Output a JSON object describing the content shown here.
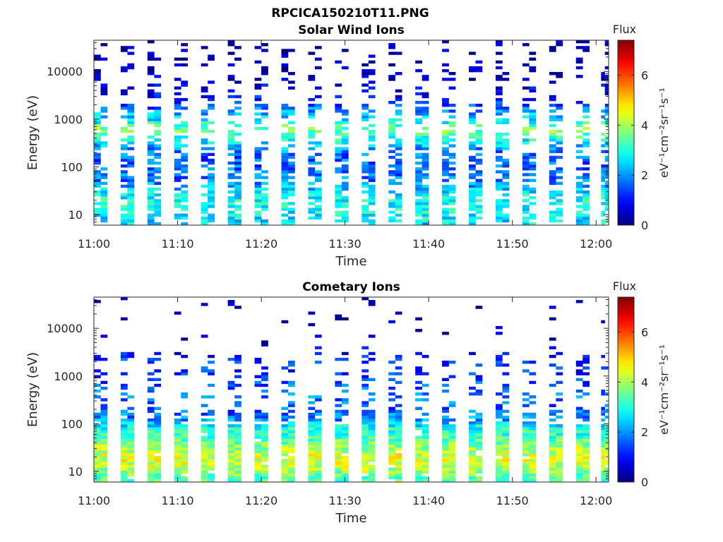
{
  "figure_title": "RPCICA150210T11.PNG",
  "chart_data": [
    {
      "type": "heatmap",
      "title": "Solar Wind Ions",
      "xlabel": "Time",
      "ylabel": "Energy (eV)",
      "yscale": "log",
      "x_tick_labels": [
        "11:00",
        "11:10",
        "11:20",
        "11:30",
        "11:40",
        "11:50",
        "12:00"
      ],
      "x_tick_minutes": [
        0,
        10,
        20,
        30,
        40,
        50,
        60
      ],
      "xlim_minutes": [
        0,
        61.5
      ],
      "y_tick_labels": [
        "10",
        "100",
        "1000",
        "10000"
      ],
      "y_tick_values": [
        10,
        100,
        1000,
        10000
      ],
      "ylim": [
        6,
        45000
      ],
      "colorbar": {
        "title": "Flux",
        "label": "eV⁻¹cm⁻²sr⁻¹s⁻¹",
        "tick_labels": [
          "0",
          "2",
          "4",
          "6"
        ],
        "tick_values": [
          0,
          2,
          4,
          6
        ],
        "range": [
          0,
          7.4
        ]
      },
      "time_columns_minutes": [
        0,
        3.2,
        6.4,
        9.6,
        12.8,
        16,
        19.2,
        22.4,
        25.6,
        28.8,
        32,
        35.2,
        38.4,
        41.6,
        44.8,
        48,
        51.2,
        54.4,
        57.6,
        60.6
      ],
      "flux_profile": [
        {
          "energy_eV": 8,
          "flux": 2.6
        },
        {
          "energy_eV": 12,
          "flux": 2.8
        },
        {
          "energy_eV": 20,
          "flux": 2.9
        },
        {
          "energy_eV": 30,
          "flux": 2.6
        },
        {
          "energy_eV": 50,
          "flux": 1.8
        },
        {
          "energy_eV": 80,
          "flux": 1.7
        },
        {
          "energy_eV": 120,
          "flux": 1.6
        },
        {
          "energy_eV": 200,
          "flux": 1.7
        },
        {
          "energy_eV": 400,
          "flux": 3.0
        },
        {
          "energy_eV": 600,
          "flux": 3.7
        },
        {
          "energy_eV": 1000,
          "flux": 2.7
        },
        {
          "energy_eV": 1600,
          "flux": 1.8
        },
        {
          "energy_eV": 2500,
          "flux": 1.0
        },
        {
          "energy_eV": 5000,
          "flux": 0.6
        },
        {
          "energy_eV": 10000,
          "flux": 0.4
        },
        {
          "energy_eV": 20000,
          "flux": 0.3
        },
        {
          "energy_eV": 40000,
          "flux": 0.2
        }
      ]
    },
    {
      "type": "heatmap",
      "title": "Cometary Ions",
      "xlabel": "Time",
      "ylabel": "Energy (eV)",
      "yscale": "log",
      "x_tick_labels": [
        "11:00",
        "11:10",
        "11:20",
        "11:30",
        "11:40",
        "11:50",
        "12:00"
      ],
      "x_tick_minutes": [
        0,
        10,
        20,
        30,
        40,
        50,
        60
      ],
      "xlim_minutes": [
        0,
        61.5
      ],
      "y_tick_labels": [
        "10",
        "100",
        "1000",
        "10000"
      ],
      "y_tick_values": [
        10,
        100,
        1000,
        10000
      ],
      "ylim": [
        6,
        45000
      ],
      "colorbar": {
        "title": "Flux",
        "label": "eV⁻¹cm⁻²sr⁻¹s⁻¹",
        "tick_labels": [
          "0",
          "2",
          "4",
          "6"
        ],
        "tick_values": [
          0,
          2,
          4,
          6
        ],
        "range": [
          0,
          7.4
        ]
      },
      "time_columns_minutes": [
        0,
        3.2,
        6.4,
        9.6,
        12.8,
        16,
        19.2,
        22.4,
        25.6,
        28.8,
        32,
        35.2,
        38.4,
        41.6,
        44.8,
        48,
        51.2,
        54.4,
        57.6,
        60.6
      ],
      "flux_profile": [
        {
          "energy_eV": 8,
          "flux": 3.4
        },
        {
          "energy_eV": 12,
          "flux": 4.2
        },
        {
          "energy_eV": 20,
          "flux": 4.4
        },
        {
          "energy_eV": 30,
          "flux": 4.0
        },
        {
          "energy_eV": 50,
          "flux": 3.3
        },
        {
          "energy_eV": 80,
          "flux": 3.0
        },
        {
          "energy_eV": 120,
          "flux": 2.0
        },
        {
          "energy_eV": 200,
          "flux": 1.5
        },
        {
          "energy_eV": 400,
          "flux": 1.8
        },
        {
          "energy_eV": 600,
          "flux": 1.6
        },
        {
          "energy_eV": 1000,
          "flux": 1.1
        },
        {
          "energy_eV": 1600,
          "flux": 1.3
        },
        {
          "energy_eV": 2500,
          "flux": 1.1
        },
        {
          "energy_eV": 5000,
          "flux": 0.4
        },
        {
          "energy_eV": 10000,
          "flux": 0.3
        }
      ]
    }
  ]
}
